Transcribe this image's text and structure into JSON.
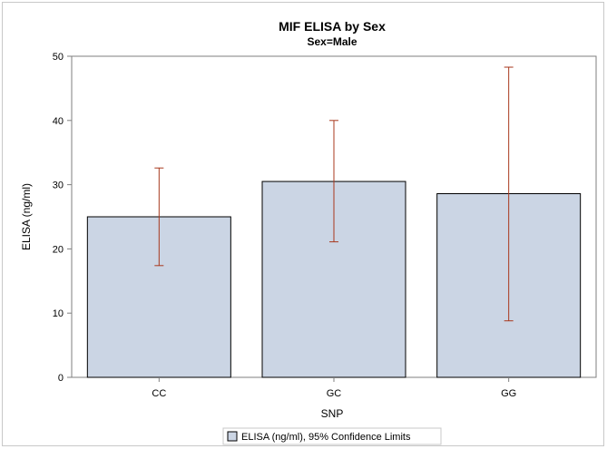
{
  "chart_data": {
    "type": "bar",
    "title": "MIF ELISA by Sex",
    "subtitle": "Sex=Male",
    "xlabel": "SNP",
    "ylabel": "ELISA (ng/ml)",
    "ylim": [
      0,
      50
    ],
    "yticks": [
      0,
      10,
      20,
      30,
      40,
      50
    ],
    "categories": [
      "CC",
      "GC",
      "GG"
    ],
    "series": [
      {
        "name": "ELISA (ng/ml), 95% Confidence Limits",
        "values": [
          25.0,
          30.5,
          28.6
        ],
        "lower": [
          17.4,
          21.1,
          8.8
        ],
        "upper": [
          32.6,
          40.0,
          48.3
        ]
      }
    ],
    "grid": false,
    "legend_position": "bottom-center",
    "colors": {
      "bar_fill": "#cbd5e4",
      "bar_stroke": "#000000",
      "error_bar": "#a8381d",
      "axis": "#7f7f7f"
    }
  }
}
